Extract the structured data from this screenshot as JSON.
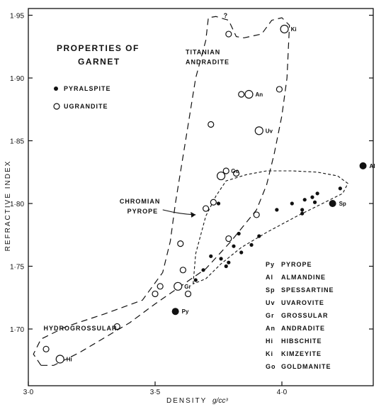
{
  "chart_data": {
    "type": "scatter",
    "title": "PROPERTIES OF GARNET",
    "title_lines": [
      "PROPERTIES OF",
      "GARNET"
    ],
    "xlabel": "DENSITY",
    "xunit": "g/cc³",
    "ylabel": "REFRACTIVE INDEX",
    "xlim": [
      3.0,
      4.35
    ],
    "ylim": [
      1.665,
      1.955
    ],
    "xticks": [
      3.0,
      3.5,
      4.0
    ],
    "xtick_labels": [
      "3·0",
      "3·5",
      "4·0"
    ],
    "yticks": [
      1.7,
      1.75,
      1.8,
      1.85,
      1.9,
      1.95
    ],
    "ytick_labels": [
      "1·70",
      "1·75",
      "1·80",
      "1·85",
      "1·90",
      "1·95"
    ],
    "grid": false,
    "legend": [
      {
        "name": "PYRALSPITE",
        "marker": "filled-circle"
      },
      {
        "name": "UGRANDITE",
        "marker": "open-circle"
      }
    ],
    "series": [
      {
        "name": "PYRALSPITE",
        "marker": "filled",
        "points": [
          {
            "x": 3.58,
            "y": 1.714,
            "size": "large",
            "label": "Py"
          },
          {
            "x": 4.2,
            "y": 1.8,
            "size": "large",
            "label": "Sp"
          },
          {
            "x": 4.32,
            "y": 1.83,
            "size": "large",
            "label": "Al"
          },
          {
            "x": 3.66,
            "y": 1.739
          },
          {
            "x": 3.69,
            "y": 1.747
          },
          {
            "x": 3.72,
            "y": 1.758
          },
          {
            "x": 3.76,
            "y": 1.756
          },
          {
            "x": 3.78,
            "y": 1.75
          },
          {
            "x": 3.79,
            "y": 1.753
          },
          {
            "x": 3.81,
            "y": 1.766
          },
          {
            "x": 3.84,
            "y": 1.761
          },
          {
            "x": 3.83,
            "y": 1.776
          },
          {
            "x": 3.88,
            "y": 1.767
          },
          {
            "x": 3.91,
            "y": 1.774
          },
          {
            "x": 3.75,
            "y": 1.8
          },
          {
            "x": 3.98,
            "y": 1.795
          },
          {
            "x": 4.04,
            "y": 1.8
          },
          {
            "x": 4.08,
            "y": 1.795
          },
          {
            "x": 4.08,
            "y": 1.792
          },
          {
            "x": 4.09,
            "y": 1.803
          },
          {
            "x": 4.12,
            "y": 1.805
          },
          {
            "x": 4.13,
            "y": 1.801
          },
          {
            "x": 4.14,
            "y": 1.808
          },
          {
            "x": 4.23,
            "y": 1.812
          }
        ]
      },
      {
        "name": "UGRANDITE",
        "marker": "open",
        "points": [
          {
            "x": 3.125,
            "y": 1.676,
            "size": "large",
            "label": "Hi"
          },
          {
            "x": 3.07,
            "y": 1.684
          },
          {
            "x": 3.35,
            "y": 1.702
          },
          {
            "x": 3.5,
            "y": 1.728
          },
          {
            "x": 3.52,
            "y": 1.734
          },
          {
            "x": 3.59,
            "y": 1.734,
            "size": "large",
            "label": "Gr"
          },
          {
            "x": 3.63,
            "y": 1.728
          },
          {
            "x": 3.61,
            "y": 1.747
          },
          {
            "x": 3.6,
            "y": 1.768
          },
          {
            "x": 3.7,
            "y": 1.796
          },
          {
            "x": 3.73,
            "y": 1.801
          },
          {
            "x": 3.79,
            "y": 1.772
          },
          {
            "x": 3.9,
            "y": 1.791
          },
          {
            "x": 3.76,
            "y": 1.822,
            "size": "large"
          },
          {
            "x": 3.78,
            "y": 1.826,
            "label": "Go"
          },
          {
            "x": 3.82,
            "y": 1.824
          },
          {
            "x": 3.72,
            "y": 1.863
          },
          {
            "x": 3.91,
            "y": 1.858,
            "size": "large",
            "label": "Uv"
          },
          {
            "x": 3.84,
            "y": 1.887
          },
          {
            "x": 3.87,
            "y": 1.887,
            "size": "large",
            "label": "An"
          },
          {
            "x": 3.99,
            "y": 1.891
          },
          {
            "x": 3.79,
            "y": 1.935
          },
          {
            "x": 4.01,
            "y": 1.939,
            "size": "large",
            "label": "Ki"
          }
        ]
      }
    ],
    "annotations": [
      {
        "text": "TITANIAN",
        "x": 3.62,
        "y": 1.919
      },
      {
        "text": "ANDRADITE",
        "x": 3.62,
        "y": 1.911
      },
      {
        "text": "CHROMIAN",
        "x": 3.36,
        "y": 1.8
      },
      {
        "text": "PYROPE",
        "x": 3.39,
        "y": 1.792
      },
      {
        "text": "HYDROGROSSULAR",
        "x": 3.06,
        "y": 1.699
      },
      {
        "text": "?",
        "x": 3.77,
        "y": 1.948
      }
    ],
    "key": [
      {
        "abbr": "Py",
        "name": "PYROPE"
      },
      {
        "abbr": "Al",
        "name": "ALMANDINE"
      },
      {
        "abbr": "Sp",
        "name": "SPESSARTINE"
      },
      {
        "abbr": "Uv",
        "name": "UVAROVITE"
      },
      {
        "abbr": "Gr",
        "name": "GROSSULAR"
      },
      {
        "abbr": "An",
        "name": "ANDRADITE"
      },
      {
        "abbr": "Hi",
        "name": "HIBSCHITE"
      },
      {
        "abbr": "Ki",
        "name": "KIMZEYITE"
      },
      {
        "abbr": "Go",
        "name": "GOLDMANITE"
      }
    ],
    "regions": [
      {
        "name": "UGRANDITE field",
        "style": "long-dash",
        "points": [
          [
            3.05,
            1.671
          ],
          [
            3.02,
            1.68
          ],
          [
            3.05,
            1.692
          ],
          [
            3.15,
            1.702
          ],
          [
            3.3,
            1.712
          ],
          [
            3.45,
            1.723
          ],
          [
            3.53,
            1.745
          ],
          [
            3.56,
            1.77
          ],
          [
            3.58,
            1.8
          ],
          [
            3.62,
            1.85
          ],
          [
            3.66,
            1.9
          ],
          [
            3.7,
            1.93
          ],
          [
            3.71,
            1.948
          ],
          [
            3.74,
            1.949
          ],
          [
            3.79,
            1.946
          ],
          [
            3.82,
            1.933
          ],
          [
            3.85,
            1.932
          ],
          [
            3.92,
            1.935
          ],
          [
            3.96,
            1.946
          ],
          [
            4.0,
            1.948
          ],
          [
            4.03,
            1.942
          ],
          [
            4.02,
            1.9
          ],
          [
            4.0,
            1.87
          ],
          [
            3.97,
            1.84
          ],
          [
            3.94,
            1.815
          ],
          [
            3.9,
            1.795
          ],
          [
            3.8,
            1.77
          ],
          [
            3.7,
            1.748
          ],
          [
            3.6,
            1.734
          ],
          [
            3.5,
            1.72
          ],
          [
            3.4,
            1.705
          ],
          [
            3.3,
            1.693
          ],
          [
            3.2,
            1.681
          ],
          [
            3.1,
            1.671
          ]
        ]
      },
      {
        "name": "PYRALSPITE field",
        "style": "short-dash",
        "points": [
          [
            3.65,
            1.736
          ],
          [
            3.66,
            1.76
          ],
          [
            3.7,
            1.79
          ],
          [
            3.74,
            1.806
          ],
          [
            3.78,
            1.818
          ],
          [
            3.86,
            1.823
          ],
          [
            3.94,
            1.826
          ],
          [
            4.04,
            1.826
          ],
          [
            4.14,
            1.825
          ],
          [
            4.22,
            1.822
          ],
          [
            4.26,
            1.816
          ],
          [
            4.24,
            1.808
          ],
          [
            4.16,
            1.8
          ],
          [
            4.06,
            1.79
          ],
          [
            3.94,
            1.777
          ],
          [
            3.84,
            1.765
          ],
          [
            3.76,
            1.752
          ],
          [
            3.7,
            1.74
          ]
        ]
      }
    ],
    "arrow": {
      "from": [
        3.53,
        1.795
      ],
      "to": [
        3.66,
        1.791
      ]
    }
  }
}
